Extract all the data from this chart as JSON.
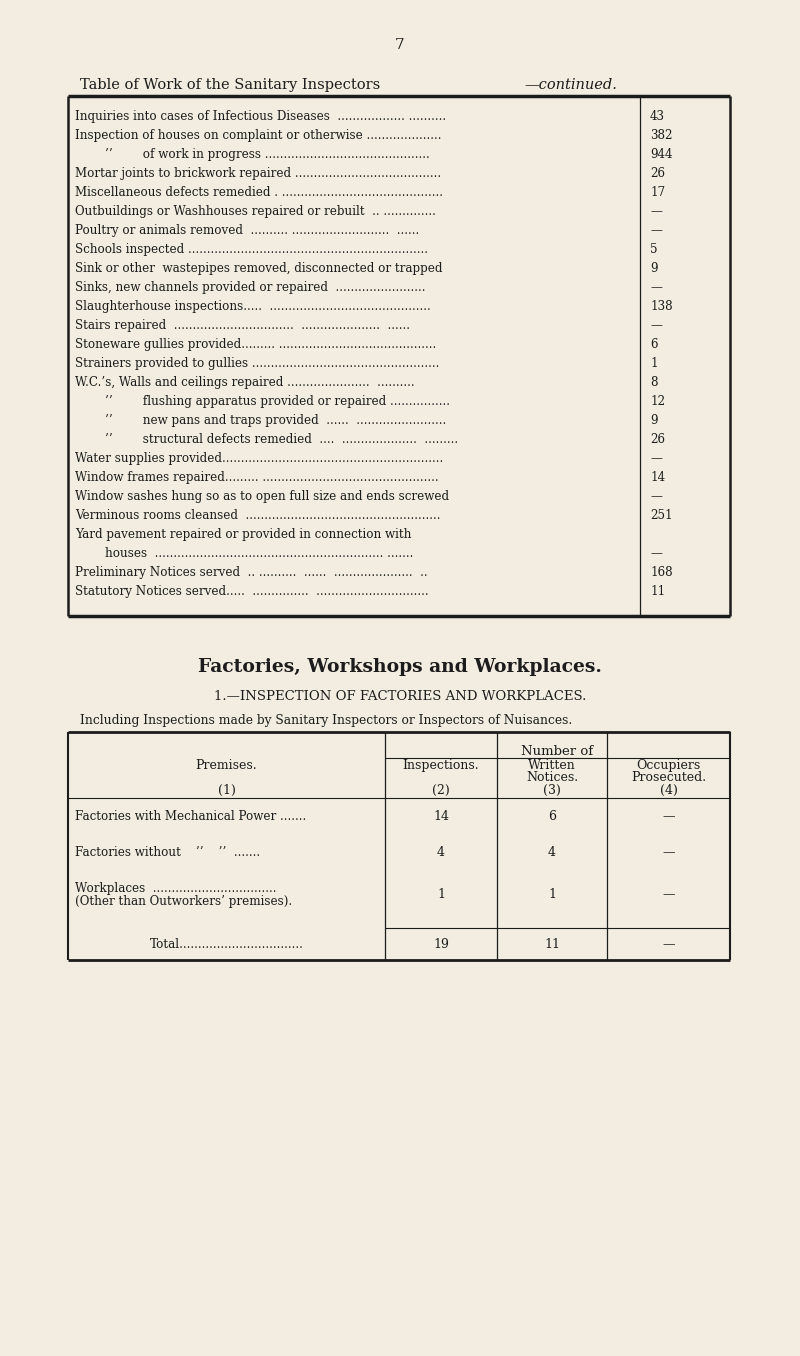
{
  "bg_color": "#f2ede0",
  "page_number": "7",
  "title_normal": "Table of Work of the Sanitary Inspectors",
  "title_italic": "—continued.",
  "table1_rows": [
    [
      "Inquiries into cases of Infectious Diseases  .................. ..........",
      "43"
    ],
    [
      "Inspection of houses on complaint or otherwise ....................",
      "382"
    ],
    [
      "        ’’        of work in progress ............................................",
      "944"
    ],
    [
      "Mortar joints to brickwork repaired .......................................",
      "26"
    ],
    [
      "Miscellaneous defects remedied . ...........................................",
      "17"
    ],
    [
      "Outbuildings or Washhouses repaired or rebuilt  .. ..............",
      "—"
    ],
    [
      "Poultry or animals removed  .......... ..........................  ......",
      "—"
    ],
    [
      "Schools inspected ................................................................",
      "5"
    ],
    [
      "Sink or other  wastepipes removed, disconnected or trapped",
      "9"
    ],
    [
      "Sinks, new channels provided or repaired  ........................",
      "—"
    ],
    [
      "Slaughterhouse inspections.....  ...........................................",
      "138"
    ],
    [
      "Stairs repaired  ................................  .....................  ......",
      "—"
    ],
    [
      "Stoneware gullies provided......... ..........................................",
      "6"
    ],
    [
      "Strainers provided to gullies ..................................................",
      "1"
    ],
    [
      "W.C.’s, Walls and ceilings repaired ......................  ..........",
      "8"
    ],
    [
      "        ’’        flushing apparatus provided or repaired ................",
      "12"
    ],
    [
      "        ’’        new pans and traps provided  ......  ........................",
      "9"
    ],
    [
      "        ’’        structural defects remedied  ....  ....................  .........",
      "26"
    ],
    [
      "Water supplies provided...........................................................",
      "—"
    ],
    [
      "Window frames repaired......... ...............................................",
      "14"
    ],
    [
      "Window sashes hung so as to open full size and ends screwed",
      "—"
    ],
    [
      "Verminous rooms cleansed  ....................................................",
      "251"
    ],
    [
      "Yard pavement repaired or provided in connection with",
      ""
    ],
    [
      "        houses  ............................................................. .......",
      "—"
    ],
    [
      "Preliminary Notices served  .. ..........  ......  .....................  ..",
      "168"
    ],
    [
      "Statutory Notices served.....  ...............  ..............................",
      "11"
    ]
  ],
  "section_title": "Factories, Workshops and Workplaces.",
  "subsection_title": "1.—INSPECTION OF FACTORIES AND WORKPLACES.",
  "subtitle2": "Including Inspections made by Sanitary Inspectors or Inspectors of Nuisances.",
  "table2_header_top": "Number of",
  "table2_col1_header": "Premises.",
  "table2_col1_num": "(1)",
  "table2_col2_header": "Inspections.",
  "table2_col2_num": "(2)",
  "table2_col3_header_1": "Written",
  "table2_col3_header_2": "Notices.",
  "table2_col3_num": "(3)",
  "table2_col4_header_1": "Occupiers",
  "table2_col4_header_2": "Prosecuted.",
  "table2_col4_num": "(4)",
  "table2_rows": [
    [
      "Factories with Mechanical Power .......",
      "14",
      "6",
      "—"
    ],
    [
      "Factories without    ’’    ’’  .......",
      "4",
      "4",
      "—"
    ],
    [
      "Workplaces  .................................",
      "1",
      "1",
      "—"
    ],
    [
      "(Other than Outworkers’ premises).",
      "",
      "",
      ""
    ]
  ],
  "table2_total_label": "Total.................................",
  "table2_total_vals": [
    "19",
    "11",
    "—"
  ],
  "text_color": "#1c1c1c",
  "line_color": "#1c1c1c"
}
